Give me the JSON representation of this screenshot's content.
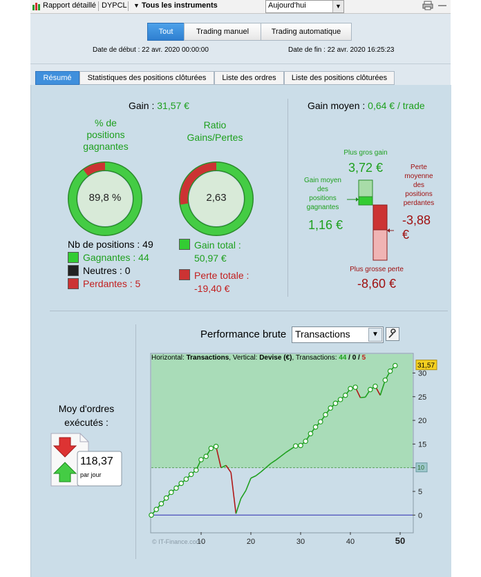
{
  "toolbar": {
    "report_label": "Rapport détaillé",
    "account": "DYPCL",
    "instruments": "Tous les instruments",
    "period": "Aujourd'hui",
    "minimize": "—"
  },
  "header": {
    "segments": [
      "Tout",
      "Trading manuel",
      "Trading automatique"
    ],
    "start_date": "Date de début : 22 avr. 2020 00:00:00",
    "end_date": "Date de fin : 22 avr. 2020 16:25:23"
  },
  "tabs": [
    "Résumé",
    "Statistiques des positions clôturées",
    "Liste des ordres",
    "Liste des positions clôturées"
  ],
  "summary": {
    "gain_label": "Gain :",
    "gain_value": "31,57 €",
    "win_pct_title_1": "% de",
    "win_pct_title_2": "positions",
    "win_pct_title_3": "gagnantes",
    "win_pct_value": "89,8 %",
    "win_pct_fraction": 0.898,
    "ratio_title_1": "Ratio",
    "ratio_title_2": "Gains/Pertes",
    "ratio_value": "2,63",
    "ratio_loss_fraction": 0.276,
    "nb_positions": "Nb de positions : 49",
    "winners": "Gagnantes : 44",
    "neutral": "Neutres : 0",
    "losers": "Perdantes : 5",
    "total_gain_label": "Gain total :",
    "total_gain_value": "50,97 €",
    "total_loss_label": "Perte totale :",
    "total_loss_value": "-19,40 €"
  },
  "avg": {
    "label": "Gain moyen :",
    "value": "0,64 € / trade",
    "max_gain_label": "Plus gros gain",
    "max_gain_value": "3,72 €",
    "avg_gain_label": [
      "Gain moyen",
      "des",
      "positions",
      "gagnantes"
    ],
    "avg_gain_value": "1,16 €",
    "avg_loss_label": [
      "Perte",
      "moyenne",
      "des",
      "positions",
      "perdantes"
    ],
    "avg_loss_value_1": "-3,88",
    "avg_loss_value_2": "€",
    "max_loss_label": "Plus grosse perte",
    "max_loss_value": "-8,60 €"
  },
  "orders": {
    "title_1": "Moy d'ordres",
    "title_2": "exécutés :",
    "value": "118,37",
    "unit": "par jour"
  },
  "perf": {
    "title": "Performance brute",
    "mode": "Transactions"
  },
  "chart_data": {
    "type": "line",
    "header_prefix": "Horizontal: ",
    "header_h": "Transactions",
    "header_mid": ", Vertical: ",
    "header_v": "Devise (€)",
    "header_tx": ", Transactions: ",
    "tx_win": "44",
    "tx_sep1": " / ",
    "tx_neutral": "0",
    "tx_sep2": " / ",
    "tx_loss": "5",
    "watermark": "© IT-Finance.com",
    "last_value_label": "31,57",
    "ref_label": "10",
    "reference_line": 10,
    "xlim": [
      0,
      52.5
    ],
    "ylim": [
      -3.6,
      34
    ],
    "x_ticks": [
      10,
      20,
      30,
      40,
      50
    ],
    "y_ticks": [
      0,
      5,
      10,
      15,
      20,
      25,
      30
    ],
    "x": [
      0,
      1,
      2,
      3,
      4,
      5,
      6,
      7,
      8,
      9,
      10,
      11,
      12,
      13,
      14,
      15,
      16,
      17,
      18,
      19,
      20,
      21,
      22,
      23,
      24,
      25,
      26,
      27,
      28,
      29,
      30,
      31,
      32,
      33,
      34,
      35,
      36,
      37,
      38,
      39,
      40,
      41,
      42,
      43,
      44,
      45,
      46,
      47,
      48,
      49
    ],
    "y": [
      0,
      1.2,
      2.4,
      3.6,
      4.8,
      5.7,
      6.7,
      7.6,
      8.6,
      9.5,
      11.7,
      12.4,
      14.1,
      14.5,
      10.0,
      10.5,
      9.0,
      0.3,
      3.5,
      5.2,
      7.8,
      8.3,
      9.1,
      10.0,
      10.9,
      11.6,
      12.4,
      13.2,
      13.9,
      14.6,
      14.7,
      15.6,
      17.2,
      18.6,
      19.7,
      21.2,
      22.6,
      23.6,
      24.4,
      25.3,
      26.7,
      27.0,
      24.8,
      24.9,
      26.5,
      27.2,
      25.3,
      28.5,
      30.4,
      31.57
    ],
    "markers": [
      1,
      1,
      1,
      1,
      1,
      1,
      1,
      1,
      1,
      1,
      1,
      1,
      1,
      1,
      0,
      0,
      0,
      0,
      0,
      0,
      0,
      0,
      0,
      0,
      0,
      0,
      0,
      0,
      0,
      1,
      1,
      1,
      1,
      1,
      1,
      1,
      1,
      1,
      1,
      1,
      1,
      1,
      0,
      0,
      1,
      1,
      0,
      1,
      1,
      1
    ]
  }
}
